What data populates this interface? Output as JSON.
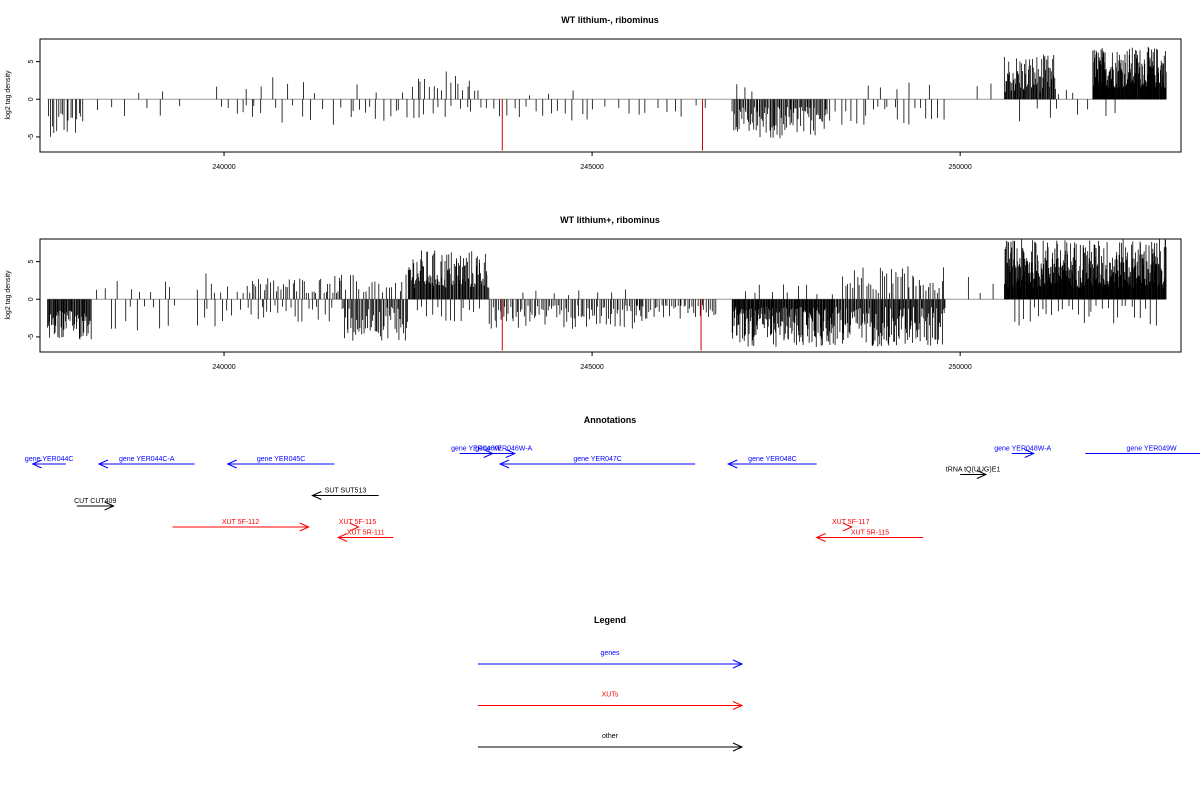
{
  "chart_data": [
    {
      "type": "bar",
      "title": "WT lithium-, ribominus",
      "ylabel": "log2 tag density",
      "xlim": [
        237500,
        253000
      ],
      "ylim": [
        -7,
        8
      ],
      "xticks": [
        240000,
        245000,
        250000
      ],
      "xtick_labels": [
        "240000",
        "245000",
        "250000"
      ],
      "yticks": [
        -5,
        0,
        5
      ],
      "ytick_labels": [
        "-5",
        "0",
        "5"
      ],
      "baseline": 0,
      "highlight_color": "#cc0000",
      "highlights": [
        {
          "x": 243780,
          "value": -6.8
        },
        {
          "x": 246500,
          "value": -6.8
        }
      ],
      "segments": [
        {
          "x0": 237600,
          "x1": 238100,
          "sign": -1,
          "lo": 1.5,
          "hi": 5.0,
          "n": 18
        },
        {
          "x0": 238100,
          "x1": 239500,
          "sign": -1,
          "lo": 0.8,
          "hi": 2.5,
          "n": 6
        },
        {
          "x0": 238700,
          "x1": 239300,
          "sign": 1,
          "lo": 0.8,
          "hi": 1.6,
          "n": 2
        },
        {
          "x0": 239900,
          "x1": 240500,
          "sign": -1,
          "lo": 0.8,
          "hi": 2.0,
          "n": 5
        },
        {
          "x0": 239800,
          "x1": 240000,
          "sign": 1,
          "lo": 1.2,
          "hi": 2.0,
          "n": 1
        },
        {
          "x0": 240300,
          "x1": 241300,
          "sign": 1,
          "lo": 0.8,
          "hi": 3.6,
          "n": 6
        },
        {
          "x0": 240200,
          "x1": 241800,
          "sign": -1,
          "lo": 0.8,
          "hi": 3.4,
          "n": 12
        },
        {
          "x0": 241600,
          "x1": 242800,
          "sign": 1,
          "lo": 0.8,
          "hi": 3.2,
          "n": 4
        },
        {
          "x0": 241700,
          "x1": 242700,
          "sign": -1,
          "lo": 1.0,
          "hi": 3.5,
          "n": 12
        },
        {
          "x0": 242600,
          "x1": 243500,
          "sign": 1,
          "lo": 1.0,
          "hi": 3.8,
          "n": 16
        },
        {
          "x0": 242700,
          "x1": 243600,
          "sign": -1,
          "lo": 0.8,
          "hi": 2.5,
          "n": 10
        },
        {
          "x0": 243600,
          "x1": 245000,
          "sign": -1,
          "lo": 0.8,
          "hi": 3.0,
          "n": 14
        },
        {
          "x0": 244100,
          "x1": 244800,
          "sign": 1,
          "lo": 0.5,
          "hi": 1.2,
          "n": 3
        },
        {
          "x0": 245000,
          "x1": 246600,
          "sign": -1,
          "lo": 0.8,
          "hi": 2.5,
          "n": 12
        },
        {
          "x0": 246900,
          "x1": 247200,
          "sign": 1,
          "lo": 0.8,
          "hi": 2.6,
          "n": 3
        },
        {
          "x0": 246900,
          "x1": 248200,
          "sign": -1,
          "lo": 1.0,
          "hi": 5.2,
          "n": 90
        },
        {
          "x0": 248200,
          "x1": 249800,
          "sign": -1,
          "lo": 0.8,
          "hi": 3.5,
          "n": 22
        },
        {
          "x0": 248700,
          "x1": 249700,
          "sign": 1,
          "lo": 0.8,
          "hi": 2.3,
          "n": 5
        },
        {
          "x0": 250100,
          "x1": 250500,
          "sign": 1,
          "lo": 0.8,
          "hi": 3.4,
          "n": 2
        },
        {
          "x0": 250600,
          "x1": 251300,
          "sign": 1,
          "lo": 1.0,
          "hi": 6.0,
          "n": 70
        },
        {
          "x0": 250700,
          "x1": 251700,
          "sign": -1,
          "lo": 0.8,
          "hi": 3.2,
          "n": 5
        },
        {
          "x0": 251300,
          "x1": 251600,
          "sign": 1,
          "lo": 0.6,
          "hi": 2.5,
          "n": 3
        },
        {
          "x0": 251800,
          "x1": 252800,
          "sign": 1,
          "lo": 1.5,
          "hi": 7.0,
          "n": 170
        },
        {
          "x0": 251700,
          "x1": 252200,
          "sign": -1,
          "lo": 0.8,
          "hi": 3.2,
          "n": 3
        }
      ]
    },
    {
      "type": "bar",
      "title": "WT lithium+, ribominus",
      "ylabel": "log2 tag density",
      "xlim": [
        237500,
        253000
      ],
      "ylim": [
        -7,
        8
      ],
      "xticks": [
        240000,
        245000,
        250000
      ],
      "xtick_labels": [
        "240000",
        "245000",
        "250000"
      ],
      "yticks": [
        -5,
        0,
        5
      ],
      "ytick_labels": [
        "-5",
        "0",
        "5"
      ],
      "baseline": 0,
      "highlight_color": "#cc0000",
      "highlights": [
        {
          "x": 243780,
          "value": -6.8
        },
        {
          "x": 246480,
          "value": -6.8
        }
      ],
      "segments": [
        {
          "x0": 237600,
          "x1": 238200,
          "sign": -1,
          "lo": 1.5,
          "hi": 5.5,
          "n": 60
        },
        {
          "x0": 238200,
          "x1": 239400,
          "sign": 1,
          "lo": 0.8,
          "hi": 2.5,
          "n": 8
        },
        {
          "x0": 238400,
          "x1": 239400,
          "sign": -1,
          "lo": 0.8,
          "hi": 4.3,
          "n": 10
        },
        {
          "x0": 239600,
          "x1": 240300,
          "sign": 1,
          "lo": 0.8,
          "hi": 3.6,
          "n": 8
        },
        {
          "x0": 239600,
          "x1": 240600,
          "sign": -1,
          "lo": 0.8,
          "hi": 3.8,
          "n": 12
        },
        {
          "x0": 240300,
          "x1": 241600,
          "sign": 1,
          "lo": 0.8,
          "hi": 3.0,
          "n": 40
        },
        {
          "x0": 240500,
          "x1": 241500,
          "sign": -1,
          "lo": 0.8,
          "hi": 3.5,
          "n": 18
        },
        {
          "x0": 241500,
          "x1": 242500,
          "sign": 1,
          "lo": 0.8,
          "hi": 3.3,
          "n": 22
        },
        {
          "x0": 241600,
          "x1": 242500,
          "sign": -1,
          "lo": 1.0,
          "hi": 5.5,
          "n": 55
        },
        {
          "x0": 242500,
          "x1": 243600,
          "sign": 1,
          "lo": 1.5,
          "hi": 6.6,
          "n": 110
        },
        {
          "x0": 242600,
          "x1": 243500,
          "sign": -1,
          "lo": 0.8,
          "hi": 3.0,
          "n": 14
        },
        {
          "x0": 243600,
          "x1": 245700,
          "sign": -1,
          "lo": 0.8,
          "hi": 4.0,
          "n": 90
        },
        {
          "x0": 244000,
          "x1": 245600,
          "sign": 1,
          "lo": 0.5,
          "hi": 1.5,
          "n": 8
        },
        {
          "x0": 245600,
          "x1": 246700,
          "sign": -1,
          "lo": 0.8,
          "hi": 2.6,
          "n": 40
        },
        {
          "x0": 246900,
          "x1": 248300,
          "sign": -1,
          "lo": 1.0,
          "hi": 6.4,
          "n": 170
        },
        {
          "x0": 247000,
          "x1": 248300,
          "sign": 1,
          "lo": 0.6,
          "hi": 2.0,
          "n": 10
        },
        {
          "x0": 248300,
          "x1": 249800,
          "sign": -1,
          "lo": 1.0,
          "hi": 6.3,
          "n": 130
        },
        {
          "x0": 248400,
          "x1": 249800,
          "sign": 1,
          "lo": 0.8,
          "hi": 4.4,
          "n": 45
        },
        {
          "x0": 250100,
          "x1": 250500,
          "sign": 1,
          "lo": 0.8,
          "hi": 3.2,
          "n": 3
        },
        {
          "x0": 250600,
          "x1": 252800,
          "sign": 1,
          "lo": 1.5,
          "hi": 8.0,
          "n": 380
        },
        {
          "x0": 250700,
          "x1": 252700,
          "sign": -1,
          "lo": 0.8,
          "hi": 3.6,
          "n": 30
        }
      ]
    },
    {
      "type": "diagram",
      "title": "Annotations",
      "xlim": [
        237500,
        253000
      ],
      "colors": {
        "genes": "#0000ff",
        "XUTs": "#ff0000",
        "other": "#000000"
      },
      "features": [
        {
          "label": "gene YER044C",
          "kind": "genes",
          "row": 0,
          "start": 237400,
          "end": 237850,
          "strand": "-"
        },
        {
          "label": "gene YER044C-A",
          "kind": "genes",
          "row": 0,
          "start": 238300,
          "end": 239600,
          "strand": "-"
        },
        {
          "label": "gene YER045C",
          "kind": "genes",
          "row": 0,
          "start": 240050,
          "end": 241500,
          "strand": "-"
        },
        {
          "label": "gene YER046W",
          "kind": "genes",
          "row": -1,
          "start": 243200,
          "end": 243650,
          "strand": "+"
        },
        {
          "label": "gene YER046W-A",
          "kind": "genes",
          "row": -1,
          "start": 243650,
          "end": 243950,
          "strand": "+"
        },
        {
          "label": "gene YER047C",
          "kind": "genes",
          "row": 0,
          "start": 243750,
          "end": 246400,
          "strand": "-"
        },
        {
          "label": "gene YER048C",
          "kind": "genes",
          "row": 0,
          "start": 246850,
          "end": 248050,
          "strand": "-"
        },
        {
          "label": "gene YER048W-A",
          "kind": "genes",
          "row": -1,
          "start": 250700,
          "end": 251000,
          "strand": "+"
        },
        {
          "label": "gene YER049W",
          "kind": "genes",
          "row": -1,
          "start": 251700,
          "end": 253500,
          "strand": "+"
        },
        {
          "label": "tRNA tQ(UUG)E1",
          "kind": "other",
          "row": 1,
          "start": 250000,
          "end": 250350,
          "strand": "+"
        },
        {
          "label": "SUT SUT513",
          "kind": "other",
          "row": 3,
          "start": 241200,
          "end": 242100,
          "strand": "-"
        },
        {
          "label": "CUT CUT409",
          "kind": "other",
          "row": 4,
          "start": 238000,
          "end": 238500,
          "strand": "+"
        },
        {
          "label": "XUT 5F-112",
          "kind": "XUTs",
          "row": 6,
          "start": 239300,
          "end": 241150,
          "strand": "+"
        },
        {
          "label": "XUT 5F-115",
          "kind": "XUTs",
          "row": 6,
          "start": 241800,
          "end": 241810,
          "strand": "+"
        },
        {
          "label": "XUT 5R-111",
          "kind": "XUTs",
          "row": 7,
          "start": 241550,
          "end": 242300,
          "strand": "-"
        },
        {
          "label": "XUT 5F-117",
          "kind": "XUTs",
          "row": 6,
          "start": 248500,
          "end": 248510,
          "strand": "+"
        },
        {
          "label": "XUT 5R-115",
          "kind": "XUTs",
          "row": 7,
          "start": 248050,
          "end": 249500,
          "strand": "-"
        }
      ]
    }
  ],
  "legend": {
    "title": "Legend",
    "items": [
      {
        "label": "genes",
        "color": "#0000ff"
      },
      {
        "label": "XUTs",
        "color": "#ff0000"
      },
      {
        "label": "other",
        "color": "#000000"
      }
    ]
  }
}
